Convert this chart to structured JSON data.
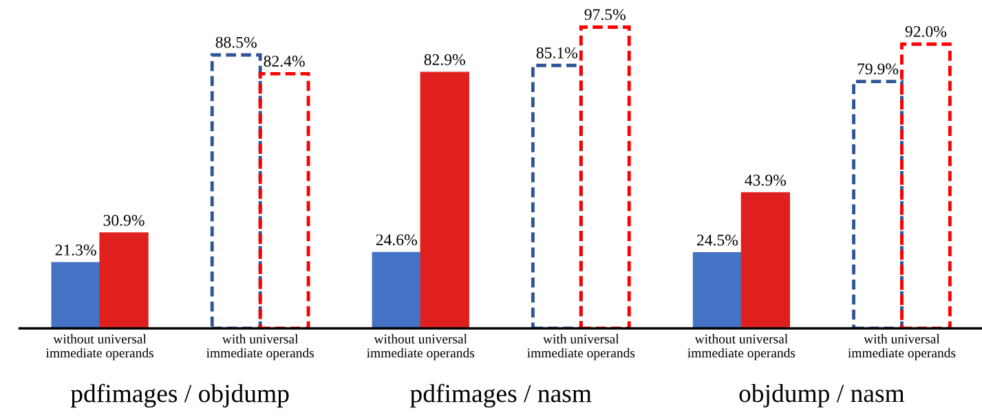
{
  "chart_data": {
    "type": "bar",
    "categories": [
      "without universal\nimmediate operands",
      "with universal\nimmediate operands",
      "without universal\nimmediate operands",
      "with universal\nimmediate operands",
      "without universal\nimmediate operands",
      "with universal\nimmediate operands"
    ],
    "series": [
      {
        "color": "#4472c4",
        "line_style": "solid",
        "values": [
          21.3,
          null,
          24.6,
          null,
          24.5,
          null
        ],
        "value_labels": [
          "21.3%",
          null,
          "24.6%",
          null,
          "24.5%",
          null
        ]
      },
      {
        "color": "#e0201f",
        "line_style": "solid",
        "values": [
          30.9,
          null,
          82.9,
          null,
          43.9,
          null
        ],
        "value_labels": [
          "30.9%",
          null,
          "82.9%",
          null,
          "43.9%",
          null
        ]
      },
      {
        "color": "#2f5597",
        "line_style": "dashed",
        "values": [
          null,
          88.5,
          null,
          85.1,
          null,
          79.9
        ],
        "value_labels": [
          null,
          "88.5%",
          null,
          "85.1%",
          null,
          "79.9%"
        ]
      },
      {
        "color": "#ff0000",
        "line_style": "dashed",
        "values": [
          null,
          82.4,
          null,
          97.5,
          null,
          92.0
        ],
        "value_labels": [
          null,
          "82.4%",
          null,
          "97.5%",
          null,
          "92.0%"
        ]
      }
    ],
    "annotations": [
      "pdfimages / objdump",
      "pdfimages / nasm",
      "objdump / nasm"
    ],
    "legend": false,
    "grid": false
  }
}
